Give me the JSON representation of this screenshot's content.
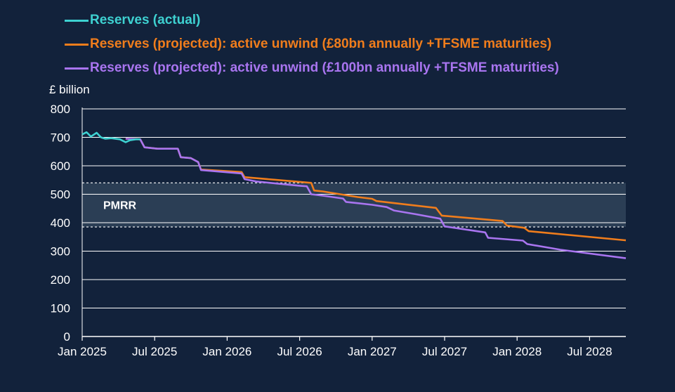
{
  "chart_data": {
    "type": "line",
    "ylabel": "£ billion",
    "ylim": [
      0,
      800
    ],
    "yticks": [
      0,
      100,
      200,
      300,
      400,
      500,
      600,
      700,
      800
    ],
    "xticks": [
      {
        "label": "Jan 2025",
        "t": 2025.0
      },
      {
        "label": "Jul 2025",
        "t": 2025.5
      },
      {
        "label": "Jan 2026",
        "t": 2026.0
      },
      {
        "label": "Jul 2026",
        "t": 2026.5
      },
      {
        "label": "Jan 2027",
        "t": 2027.0
      },
      {
        "label": "Jul 2027",
        "t": 2027.5
      },
      {
        "label": "Jan 2028",
        "t": 2028.0
      },
      {
        "label": "Jul 2028",
        "t": 2028.5
      }
    ],
    "xlim": [
      2025.0,
      2028.75
    ],
    "band": {
      "label": "PMRR",
      "low": 385,
      "high": 540,
      "color": "#2b3e55"
    },
    "grid": true,
    "legend_position": "top-left",
    "series": [
      {
        "name": "Reserves (actual)",
        "color": "#3ed1d1",
        "points": [
          [
            2025.0,
            710
          ],
          [
            2025.03,
            718
          ],
          [
            2025.06,
            703
          ],
          [
            2025.1,
            716
          ],
          [
            2025.13,
            700
          ],
          [
            2025.16,
            695
          ],
          [
            2025.2,
            697
          ],
          [
            2025.26,
            693
          ],
          [
            2025.3,
            683
          ],
          [
            2025.33,
            690
          ],
          [
            2025.37,
            693
          ],
          [
            2025.4,
            693
          ]
        ]
      },
      {
        "name": "Reserves (projected): active unwind (£80bn annually +TFSME maturities)",
        "color": "#f07d1c",
        "points": [
          [
            2025.3,
            695
          ],
          [
            2025.4,
            693
          ],
          [
            2025.43,
            665
          ],
          [
            2025.52,
            660
          ],
          [
            2025.66,
            660
          ],
          [
            2025.68,
            630
          ],
          [
            2025.75,
            627
          ],
          [
            2025.8,
            613
          ],
          [
            2025.82,
            587
          ],
          [
            2026.1,
            578
          ],
          [
            2026.12,
            560
          ],
          [
            2026.58,
            540
          ],
          [
            2026.6,
            513
          ],
          [
            2026.66,
            510
          ],
          [
            2026.9,
            490
          ],
          [
            2027.0,
            484
          ],
          [
            2027.03,
            476
          ],
          [
            2027.44,
            452
          ],
          [
            2027.48,
            425
          ],
          [
            2027.9,
            406
          ],
          [
            2027.93,
            390
          ],
          [
            2028.05,
            382
          ],
          [
            2028.08,
            370
          ],
          [
            2028.75,
            338
          ]
        ]
      },
      {
        "name": "Reserves (projected): active unwind (£100bn annually +TFSME maturities)",
        "color": "#a975f0",
        "points": [
          [
            2025.3,
            695
          ],
          [
            2025.4,
            693
          ],
          [
            2025.43,
            665
          ],
          [
            2025.52,
            660
          ],
          [
            2025.66,
            660
          ],
          [
            2025.68,
            630
          ],
          [
            2025.75,
            627
          ],
          [
            2025.8,
            613
          ],
          [
            2025.82,
            585
          ],
          [
            2026.1,
            573
          ],
          [
            2026.12,
            553
          ],
          [
            2026.2,
            545
          ],
          [
            2026.5,
            530
          ],
          [
            2026.55,
            528
          ],
          [
            2026.58,
            500
          ],
          [
            2026.66,
            495
          ],
          [
            2026.8,
            485
          ],
          [
            2026.82,
            473
          ],
          [
            2027.0,
            463
          ],
          [
            2027.1,
            455
          ],
          [
            2027.15,
            443
          ],
          [
            2027.3,
            430
          ],
          [
            2027.47,
            414
          ],
          [
            2027.5,
            387
          ],
          [
            2027.78,
            366
          ],
          [
            2027.8,
            347
          ],
          [
            2028.04,
            337
          ],
          [
            2028.07,
            325
          ],
          [
            2028.3,
            305
          ],
          [
            2028.75,
            275
          ]
        ]
      }
    ]
  }
}
